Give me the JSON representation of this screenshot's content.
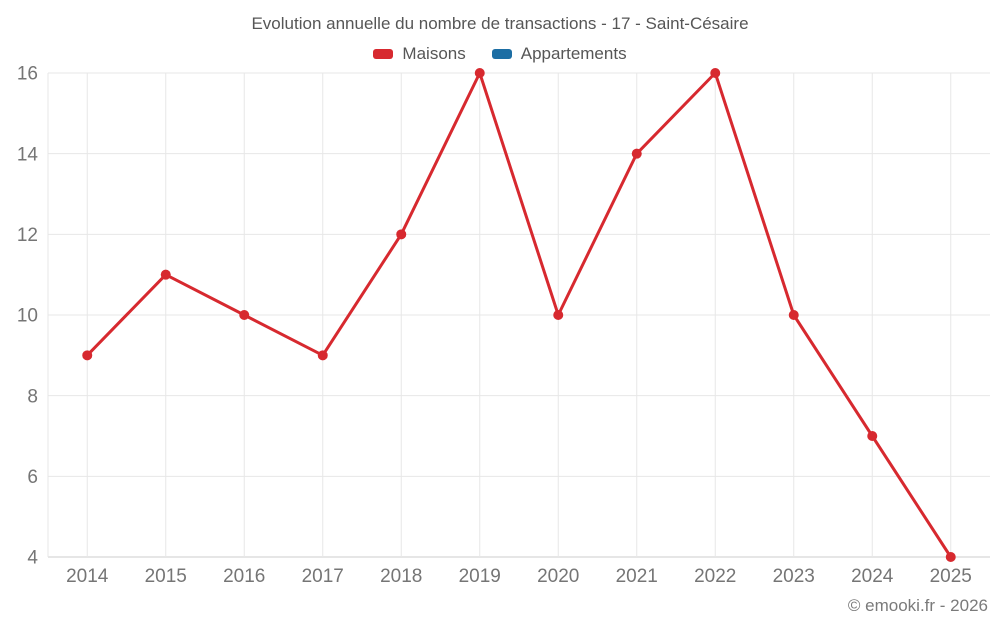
{
  "header": {
    "title": "Evolution annuelle du nombre de transactions - 17 - Saint-Césaire"
  },
  "legend": {
    "items": [
      {
        "label": "Maisons",
        "color": "#d7292f"
      },
      {
        "label": "Appartements",
        "color": "#1c6ea4"
      }
    ]
  },
  "footer": {
    "credit": "© emooki.fr - 2026"
  },
  "chart_data": {
    "type": "line",
    "title": "Evolution annuelle du nombre de transactions - 17 - Saint-Césaire",
    "categories": [
      "2014",
      "2015",
      "2016",
      "2017",
      "2018",
      "2019",
      "2020",
      "2021",
      "2022",
      "2023",
      "2024",
      "2025"
    ],
    "series": [
      {
        "name": "Maisons",
        "color": "#d7292f",
        "values": [
          9,
          11,
          10,
          9,
          12,
          16,
          10,
          14,
          16,
          10,
          7,
          4
        ]
      },
      {
        "name": "Appartements",
        "color": "#1c6ea4",
        "values": []
      }
    ],
    "xlabel": "",
    "ylabel": "",
    "ylim": [
      4,
      16
    ],
    "yticks": [
      4,
      6,
      8,
      10,
      12,
      14,
      16
    ],
    "grid": true,
    "legend_position": "top",
    "styles": {
      "grid_color": "#e7e7e7",
      "axis_line_color": "#cccccc",
      "tick_label_color": "#757575",
      "title_color": "#565656",
      "credit_color": "#7a7a7a",
      "line_width": 3,
      "point_radius": 5
    }
  }
}
